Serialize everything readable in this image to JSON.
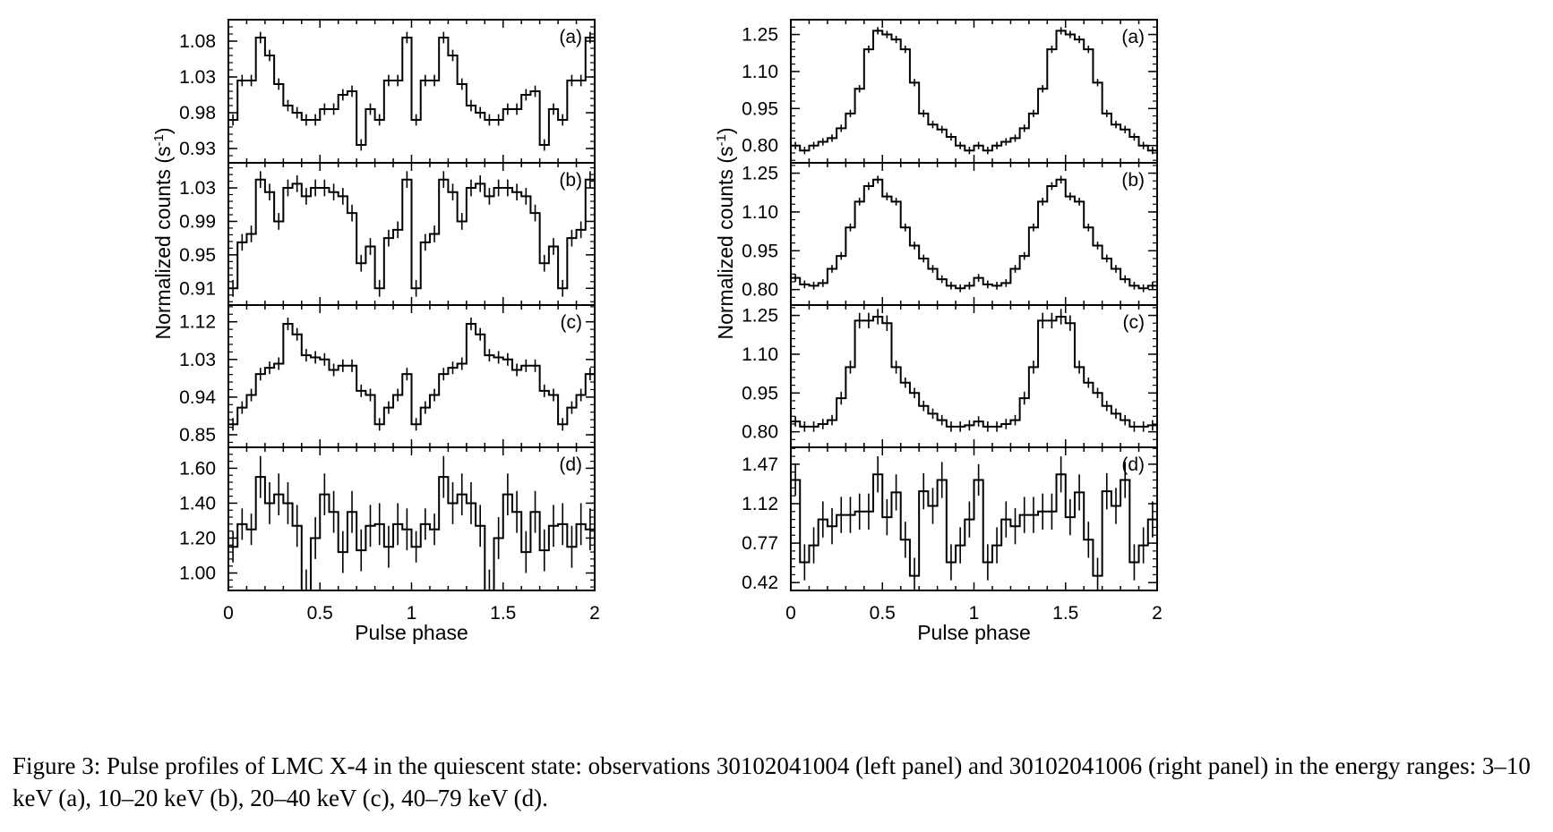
{
  "caption": "Figure 3: Pulse profiles of LMC X-4 in the quiescent state: observations 30102041004 (left panel) and 30102041006 (right panel) in the energy ranges: 3–10 keV (a), 10–20 keV (b), 20–40 keV (c), 40–79 keV (d).",
  "chart_data": [
    {
      "type": "line",
      "observation": "30102041004",
      "xlabel": "Pulse phase",
      "ylabel": "Normalized counts (s-1)",
      "ylabel_main": "Normalized counts (s",
      "ylabel_sup": "-1",
      "ylabel_close": ")",
      "xlim": [
        0,
        2
      ],
      "xticks": [
        "0",
        "0.5",
        "1",
        "1.5",
        "2"
      ],
      "grid": false,
      "bins_per_cycle": 20,
      "panels": [
        {
          "tag": "(a)",
          "ylim": [
            0.91,
            1.11
          ],
          "yticks": [
            0.93,
            0.98,
            1.03,
            1.08
          ],
          "ytick_labels": [
            "0.93",
            "0.98",
            "1.03",
            "1.08"
          ],
          "values": [
            0.97,
            1.025,
            1.025,
            1.085,
            1.06,
            1.02,
            0.99,
            0.98,
            0.97,
            0.97,
            0.985,
            0.985,
            1.005,
            1.01,
            0.935,
            0.985,
            0.97,
            1.025,
            1.025,
            1.085
          ],
          "errors": [
            0.008,
            0.008,
            0.008,
            0.008,
            0.008,
            0.008,
            0.008,
            0.008,
            0.008,
            0.008,
            0.008,
            0.008,
            0.008,
            0.008,
            0.008,
            0.008,
            0.008,
            0.008,
            0.008,
            0.008
          ]
        },
        {
          "tag": "(b)",
          "ylim": [
            0.89,
            1.06
          ],
          "yticks": [
            0.91,
            0.95,
            0.99,
            1.03
          ],
          "ytick_labels": [
            "0.91",
            "0.95",
            "0.99",
            "1.03"
          ],
          "values": [
            0.91,
            0.965,
            0.975,
            1.04,
            1.025,
            0.99,
            1.03,
            1.035,
            1.02,
            1.03,
            1.03,
            1.025,
            1.02,
            1.0,
            0.94,
            0.96,
            0.91,
            0.97,
            0.98,
            1.04
          ],
          "errors": [
            0.01,
            0.01,
            0.01,
            0.01,
            0.01,
            0.01,
            0.01,
            0.01,
            0.01,
            0.01,
            0.01,
            0.01,
            0.01,
            0.01,
            0.01,
            0.01,
            0.01,
            0.01,
            0.01,
            0.01
          ]
        },
        {
          "tag": "(c)",
          "ylim": [
            0.82,
            1.16
          ],
          "yticks": [
            0.85,
            0.94,
            1.03,
            1.12
          ],
          "ytick_labels": [
            "0.85",
            "0.94",
            "1.03",
            "1.12"
          ],
          "values": [
            0.875,
            0.915,
            0.945,
            0.995,
            1.01,
            1.02,
            1.115,
            1.09,
            1.04,
            1.035,
            1.03,
            1.005,
            1.015,
            1.015,
            0.955,
            0.945,
            0.875,
            0.915,
            0.945,
            0.995
          ],
          "errors": [
            0.015,
            0.015,
            0.015,
            0.015,
            0.015,
            0.015,
            0.015,
            0.015,
            0.015,
            0.015,
            0.015,
            0.015,
            0.015,
            0.015,
            0.015,
            0.015,
            0.015,
            0.015,
            0.015,
            0.015
          ]
        },
        {
          "tag": "(d)",
          "ylim": [
            0.9,
            1.72
          ],
          "yticks": [
            1.0,
            1.2,
            1.4,
            1.6
          ],
          "ytick_labels": [
            "1.00",
            "1.20",
            "1.40",
            "1.60"
          ],
          "values": [
            1.15,
            1.28,
            1.25,
            1.55,
            1.4,
            1.45,
            1.4,
            1.27,
            0.9,
            1.2,
            1.45,
            1.35,
            1.12,
            1.35,
            1.13,
            1.27,
            1.28,
            1.15,
            1.28,
            1.25
          ],
          "errors": [
            0.09,
            0.09,
            0.09,
            0.12,
            0.12,
            0.12,
            0.12,
            0.12,
            0.12,
            0.12,
            0.12,
            0.12,
            0.12,
            0.12,
            0.12,
            0.12,
            0.12,
            0.12,
            0.12,
            0.12
          ]
        }
      ]
    },
    {
      "type": "line",
      "observation": "30102041006",
      "xlabel": "Pulse phase",
      "ylabel": "Normalized counts (s-1)",
      "ylabel_main": "Normalized counts (s",
      "ylabel_sup": "-1",
      "ylabel_close": ")",
      "xlim": [
        0,
        2
      ],
      "xticks": [
        "0",
        "0.5",
        "1",
        "1.5",
        "2"
      ],
      "grid": false,
      "bins_per_cycle": 20,
      "panels": [
        {
          "tag": "(a)",
          "ylim": [
            0.73,
            1.31
          ],
          "yticks": [
            0.8,
            0.95,
            1.1,
            1.25
          ],
          "ytick_labels": [
            "0.80",
            "0.95",
            "1.10",
            "1.25"
          ],
          "values": [
            0.8,
            0.78,
            0.8,
            0.815,
            0.83,
            0.87,
            0.93,
            1.03,
            1.19,
            1.265,
            1.25,
            1.23,
            1.19,
            1.055,
            0.93,
            0.885,
            0.865,
            0.835,
            0.8,
            0.78
          ],
          "errors": [
            0.015,
            0.015,
            0.015,
            0.015,
            0.015,
            0.015,
            0.015,
            0.015,
            0.015,
            0.015,
            0.015,
            0.015,
            0.015,
            0.015,
            0.015,
            0.015,
            0.015,
            0.015,
            0.015,
            0.015
          ]
        },
        {
          "tag": "(b)",
          "ylim": [
            0.74,
            1.29
          ],
          "yticks": [
            0.8,
            0.95,
            1.1,
            1.25
          ],
          "ytick_labels": [
            "0.80",
            "0.95",
            "1.10",
            "1.25"
          ],
          "values": [
            0.845,
            0.82,
            0.815,
            0.825,
            0.88,
            0.93,
            1.04,
            1.14,
            1.2,
            1.225,
            1.16,
            1.14,
            1.04,
            0.97,
            0.92,
            0.88,
            0.84,
            0.815,
            0.805,
            0.815
          ],
          "errors": [
            0.015,
            0.015,
            0.015,
            0.015,
            0.015,
            0.015,
            0.015,
            0.015,
            0.015,
            0.015,
            0.015,
            0.015,
            0.015,
            0.015,
            0.015,
            0.015,
            0.015,
            0.015,
            0.015,
            0.015
          ]
        },
        {
          "tag": "(c)",
          "ylim": [
            0.74,
            1.29
          ],
          "yticks": [
            0.8,
            0.95,
            1.1,
            1.25
          ],
          "ytick_labels": [
            "0.80",
            "0.95",
            "1.10",
            "1.25"
          ],
          "values": [
            0.84,
            0.82,
            0.82,
            0.83,
            0.845,
            0.93,
            1.05,
            1.23,
            1.23,
            1.245,
            1.22,
            1.05,
            0.99,
            0.95,
            0.9,
            0.87,
            0.845,
            0.82,
            0.82,
            0.825
          ],
          "errors": [
            0.02,
            0.02,
            0.02,
            0.02,
            0.02,
            0.025,
            0.025,
            0.03,
            0.03,
            0.03,
            0.03,
            0.025,
            0.02,
            0.02,
            0.02,
            0.02,
            0.02,
            0.02,
            0.02,
            0.02
          ]
        },
        {
          "tag": "(d)",
          "ylim": [
            0.35,
            1.62
          ],
          "yticks": [
            0.42,
            0.77,
            1.12,
            1.47
          ],
          "ytick_labels": [
            "0.42",
            "0.77",
            "1.12",
            "1.47"
          ],
          "values": [
            1.33,
            0.6,
            0.75,
            0.98,
            0.92,
            1.02,
            1.02,
            1.05,
            1.05,
            1.38,
            1.0,
            1.22,
            0.8,
            0.48,
            1.23,
            1.1,
            1.33,
            0.6,
            0.75,
            0.98
          ],
          "errors": [
            0.14,
            0.16,
            0.16,
            0.16,
            0.16,
            0.16,
            0.16,
            0.16,
            0.16,
            0.16,
            0.16,
            0.16,
            0.16,
            0.16,
            0.16,
            0.16,
            0.16,
            0.16,
            0.16,
            0.16
          ]
        }
      ]
    }
  ]
}
